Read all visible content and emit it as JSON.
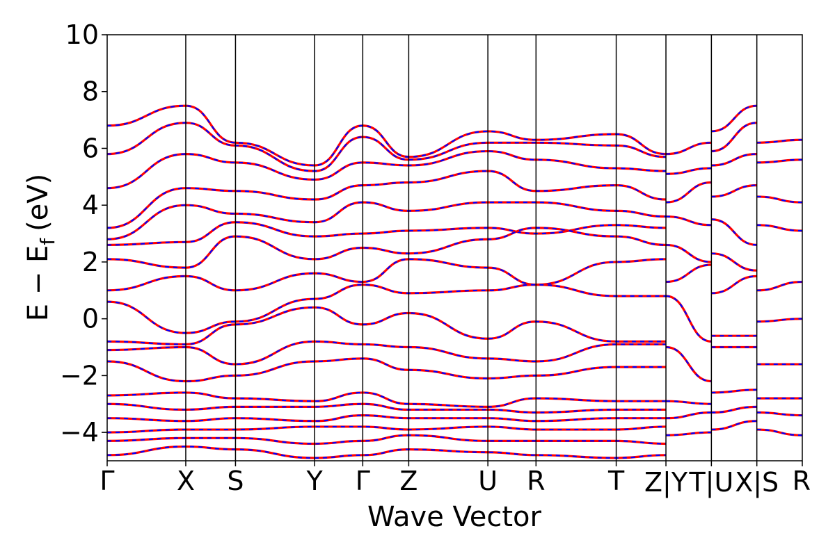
{
  "chart_data": {
    "type": "line",
    "xlabel": "Wave Vector",
    "ylabel": "E − E",
    "ylabel_sub": "f",
    "ylabel_unit": "(eV)",
    "ylim": [
      -5,
      10
    ],
    "xlim": [
      0,
      13.0
    ],
    "y_ticks": [
      -4,
      -2,
      0,
      2,
      4,
      6,
      8,
      10
    ],
    "y_tick_labels": [
      "−4",
      "−2",
      "0",
      "2",
      "4",
      "6",
      "8",
      "10"
    ],
    "grid": false,
    "kpoint_lines": [
      1.47,
      2.4,
      3.88,
      4.78,
      5.64,
      7.12,
      8.02,
      9.52,
      10.45,
      11.3,
      12.15
    ],
    "kpoint_labels": [
      {
        "x": 0,
        "label": "Γ"
      },
      {
        "x": 1.47,
        "label": "X"
      },
      {
        "x": 2.4,
        "label": "S"
      },
      {
        "x": 3.88,
        "label": "Y"
      },
      {
        "x": 4.78,
        "label": "Γ"
      },
      {
        "x": 5.64,
        "label": "Z"
      },
      {
        "x": 7.12,
        "label": "U"
      },
      {
        "x": 8.02,
        "label": "R"
      },
      {
        "x": 9.52,
        "label": "T"
      },
      {
        "x": 10.45,
        "label": "Z|Y"
      },
      {
        "x": 11.3,
        "label": "T|U"
      },
      {
        "x": 12.15,
        "label": "X|S"
      },
      {
        "x": 13.0,
        "label": "R"
      }
    ],
    "series_colors": {
      "spin_up": "#ff0000",
      "spin_down": "#0000ff"
    },
    "series_styles": {
      "spin_up": "solid",
      "spin_down": "dashed"
    },
    "bands_sample": [
      {
        "x": [
          0,
          1.47,
          2.4,
          3.88,
          4.78,
          5.64,
          7.12,
          8.02,
          9.52,
          10.45
        ],
        "y": [
          6.8,
          7.5,
          6.2,
          5.4,
          6.8,
          5.7,
          6.6,
          6.3,
          6.5,
          5.8
        ]
      },
      {
        "x": [
          0,
          1.47,
          2.4,
          3.88,
          4.78,
          5.64,
          7.12,
          8.02,
          9.52,
          10.45
        ],
        "y": [
          5.8,
          6.9,
          6.1,
          5.2,
          6.4,
          5.6,
          6.2,
          6.2,
          6.1,
          5.7
        ]
      },
      {
        "x": [
          0,
          1.47,
          2.4,
          3.88,
          4.78,
          5.64,
          7.12,
          8.02,
          9.52,
          10.45
        ],
        "y": [
          4.6,
          5.8,
          5.5,
          4.9,
          5.5,
          5.4,
          5.9,
          5.6,
          5.3,
          5.2
        ]
      },
      {
        "x": [
          0,
          1.47,
          2.4,
          3.88,
          4.78,
          5.64,
          7.12,
          8.02,
          9.52,
          10.45
        ],
        "y": [
          3.2,
          4.6,
          4.5,
          4.2,
          4.7,
          4.8,
          5.2,
          4.5,
          4.7,
          4.2
        ]
      },
      {
        "x": [
          0,
          1.47,
          2.4,
          3.88,
          4.78,
          5.64,
          7.12,
          8.02,
          9.52,
          10.45
        ],
        "y": [
          2.8,
          4.0,
          3.7,
          3.4,
          4.1,
          3.8,
          4.1,
          4.1,
          3.8,
          3.6
        ]
      },
      {
        "x": [
          0,
          1.47,
          2.4,
          3.88,
          4.78,
          5.64,
          7.12,
          8.02,
          9.52,
          10.45
        ],
        "y": [
          2.6,
          2.7,
          3.4,
          2.9,
          3.0,
          3.1,
          3.2,
          3.0,
          3.3,
          3.2
        ]
      },
      {
        "x": [
          0,
          1.47,
          2.4,
          3.88,
          4.78,
          5.64,
          7.12,
          8.02,
          9.52,
          10.45
        ],
        "y": [
          2.1,
          1.8,
          2.9,
          2.1,
          2.5,
          2.3,
          2.8,
          3.2,
          2.9,
          2.6
        ]
      },
      {
        "x": [
          0,
          1.47,
          2.4,
          3.88,
          4.78,
          5.64,
          7.12,
          8.02,
          9.52,
          10.45
        ],
        "y": [
          1.0,
          1.5,
          1.0,
          1.6,
          1.3,
          2.1,
          1.8,
          1.2,
          2.0,
          2.1
        ]
      },
      {
        "x": [
          0,
          1.47,
          2.4,
          3.88,
          4.78,
          5.64,
          7.12,
          8.02,
          9.52,
          10.45
        ],
        "y": [
          0.6,
          -0.5,
          -0.1,
          0.7,
          1.2,
          0.9,
          1.0,
          1.2,
          0.8,
          0.8
        ]
      },
      {
        "x": [
          0,
          1.47,
          2.4,
          3.88,
          4.78,
          5.64,
          7.12,
          8.02,
          9.52,
          10.45
        ],
        "y": [
          -0.8,
          -0.9,
          -0.2,
          0.4,
          -0.2,
          0.2,
          -0.7,
          -0.1,
          -0.8,
          -0.8
        ]
      },
      {
        "x": [
          0,
          1.47,
          2.4,
          3.88,
          4.78,
          5.64,
          7.12,
          8.02,
          9.52,
          10.45
        ],
        "y": [
          -1.1,
          -1.0,
          -1.6,
          -0.8,
          -0.9,
          -1.0,
          -1.4,
          -1.5,
          -0.9,
          -0.9
        ]
      },
      {
        "x": [
          0,
          1.47,
          2.4,
          3.88,
          4.78,
          5.64,
          7.12,
          8.02,
          9.52,
          10.45
        ],
        "y": [
          -1.5,
          -2.2,
          -2.0,
          -1.5,
          -1.4,
          -1.8,
          -2.1,
          -2.0,
          -1.7,
          -1.7
        ]
      },
      {
        "x": [
          0,
          1.47,
          2.4,
          3.88,
          4.78,
          5.64,
          7.12,
          8.02,
          9.52,
          10.45
        ],
        "y": [
          -2.7,
          -2.6,
          -2.8,
          -2.9,
          -2.6,
          -3.0,
          -3.1,
          -2.8,
          -2.9,
          -2.9
        ]
      },
      {
        "x": [
          0,
          1.47,
          2.4,
          3.88,
          4.78,
          5.64,
          7.12,
          8.02,
          9.52,
          10.45
        ],
        "y": [
          -3.0,
          -3.2,
          -3.1,
          -3.1,
          -3.0,
          -3.2,
          -3.2,
          -3.3,
          -3.2,
          -3.2
        ]
      },
      {
        "x": [
          0,
          1.47,
          2.4,
          3.88,
          4.78,
          5.64,
          7.12,
          8.02,
          9.52,
          10.45
        ],
        "y": [
          -3.5,
          -3.6,
          -3.5,
          -3.6,
          -3.4,
          -3.5,
          -3.5,
          -3.6,
          -3.5,
          -3.5
        ]
      },
      {
        "x": [
          0,
          1.47,
          2.4,
          3.88,
          4.78,
          5.64,
          7.12,
          8.02,
          9.52,
          10.45
        ],
        "y": [
          -4.0,
          -3.9,
          -3.9,
          -3.8,
          -3.8,
          -3.9,
          -3.8,
          -3.9,
          -3.9,
          -3.8
        ]
      },
      {
        "x": [
          0,
          1.47,
          2.4,
          3.88,
          4.78,
          5.64,
          7.12,
          8.02,
          9.52,
          10.45
        ],
        "y": [
          -4.3,
          -4.2,
          -4.2,
          -4.4,
          -4.3,
          -4.1,
          -4.3,
          -4.3,
          -4.3,
          -4.4
        ]
      },
      {
        "x": [
          0,
          1.47,
          2.4,
          3.88,
          4.78,
          5.64,
          7.12,
          8.02,
          9.52,
          10.45
        ],
        "y": [
          -4.8,
          -4.5,
          -4.6,
          -4.9,
          -4.8,
          -4.6,
          -4.7,
          -4.8,
          -4.9,
          -4.8
        ]
      },
      {
        "x": [
          10.45,
          11.3
        ],
        "y": [
          5.8,
          6.2
        ]
      },
      {
        "x": [
          10.45,
          11.3
        ],
        "y": [
          5.1,
          5.3
        ]
      },
      {
        "x": [
          10.45,
          11.3
        ],
        "y": [
          4.1,
          4.8
        ]
      },
      {
        "x": [
          10.45,
          11.3
        ],
        "y": [
          3.6,
          3.3
        ]
      },
      {
        "x": [
          10.45,
          11.3
        ],
        "y": [
          2.6,
          2.0
        ]
      },
      {
        "x": [
          10.45,
          11.3
        ],
        "y": [
          1.3,
          1.9
        ]
      },
      {
        "x": [
          10.45,
          11.3
        ],
        "y": [
          0.8,
          -0.8
        ]
      },
      {
        "x": [
          10.45,
          11.3
        ],
        "y": [
          -1.0,
          -2.2
        ]
      },
      {
        "x": [
          10.45,
          11.3
        ],
        "y": [
          -2.9,
          -3.0
        ]
      },
      {
        "x": [
          10.45,
          11.3
        ],
        "y": [
          -3.5,
          -3.3
        ]
      },
      {
        "x": [
          10.45,
          11.3
        ],
        "y": [
          -4.1,
          -4.0
        ]
      },
      {
        "x": [
          11.3,
          12.15
        ],
        "y": [
          6.6,
          7.5
        ]
      },
      {
        "x": [
          11.3,
          12.15
        ],
        "y": [
          5.9,
          6.9
        ]
      },
      {
        "x": [
          11.3,
          12.15
        ],
        "y": [
          5.4,
          5.8
        ]
      },
      {
        "x": [
          11.3,
          12.15
        ],
        "y": [
          4.3,
          4.7
        ]
      },
      {
        "x": [
          11.3,
          12.15
        ],
        "y": [
          3.5,
          2.6
        ]
      },
      {
        "x": [
          11.3,
          12.15
        ],
        "y": [
          2.3,
          1.7
        ]
      },
      {
        "x": [
          11.3,
          12.15
        ],
        "y": [
          0.9,
          1.5
        ]
      },
      {
        "x": [
          11.3,
          12.15
        ],
        "y": [
          -0.6,
          -0.6
        ]
      },
      {
        "x": [
          11.3,
          12.15
        ],
        "y": [
          -1.0,
          -1.0
        ]
      },
      {
        "x": [
          11.3,
          12.15
        ],
        "y": [
          -2.6,
          -2.5
        ]
      },
      {
        "x": [
          11.3,
          12.15
        ],
        "y": [
          -3.3,
          -3.1
        ]
      },
      {
        "x": [
          11.3,
          12.15
        ],
        "y": [
          -3.9,
          -3.6
        ]
      },
      {
        "x": [
          12.15,
          13.0
        ],
        "y": [
          6.2,
          6.3
        ]
      },
      {
        "x": [
          12.15,
          13.0
        ],
        "y": [
          5.5,
          5.6
        ]
      },
      {
        "x": [
          12.15,
          13.0
        ],
        "y": [
          4.3,
          4.1
        ]
      },
      {
        "x": [
          12.15,
          13.0
        ],
        "y": [
          3.3,
          3.1
        ]
      },
      {
        "x": [
          12.15,
          13.0
        ],
        "y": [
          1.0,
          1.3
        ]
      },
      {
        "x": [
          12.15,
          13.0
        ],
        "y": [
          -0.1,
          0.0
        ]
      },
      {
        "x": [
          12.15,
          13.0
        ],
        "y": [
          -1.6,
          -1.6
        ]
      },
      {
        "x": [
          12.15,
          13.0
        ],
        "y": [
          -2.8,
          -2.8
        ]
      },
      {
        "x": [
          12.15,
          13.0
        ],
        "y": [
          -3.3,
          -3.4
        ]
      },
      {
        "x": [
          12.15,
          13.0
        ],
        "y": [
          -3.9,
          -4.1
        ]
      }
    ]
  }
}
